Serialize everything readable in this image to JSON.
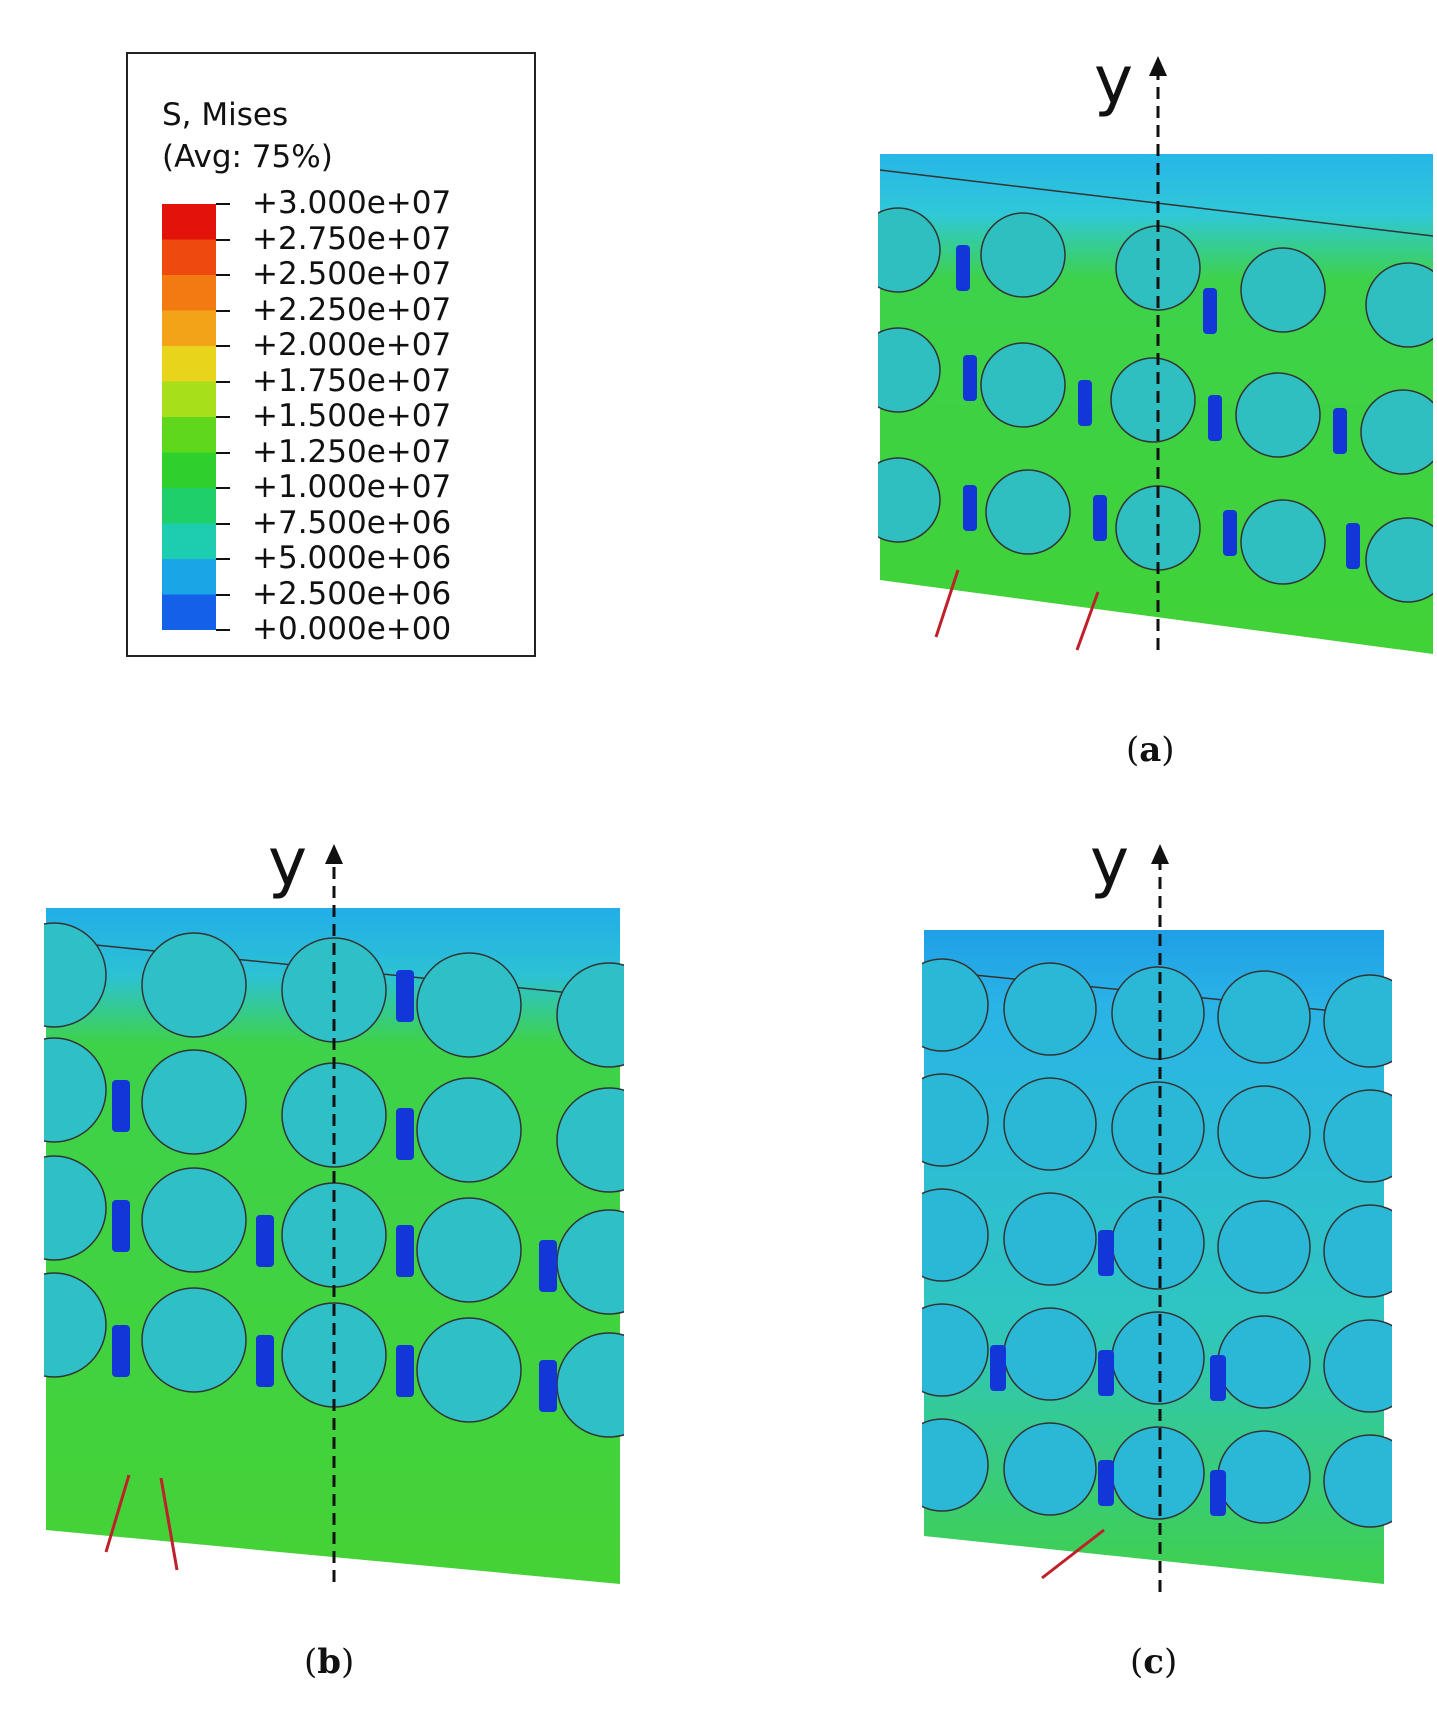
{
  "legend": {
    "title_line1": "S, Mises",
    "title_line2": "(Avg: 75%)",
    "labels": [
      "+3.000e+07",
      "+2.750e+07",
      "+2.500e+07",
      "+2.250e+07",
      "+2.000e+07",
      "+1.750e+07",
      "+1.500e+07",
      "+1.250e+07",
      "+1.000e+07",
      "+7.500e+06",
      "+5.000e+06",
      "+2.500e+06",
      "+0.000e+00"
    ],
    "colors": [
      "#e3120b",
      "#ee4a10",
      "#f37a12",
      "#f2a318",
      "#e8d41a",
      "#a8df1b",
      "#5ed71c",
      "#2fd02e",
      "#1fcf6a",
      "#1ccdb0",
      "#1aa6e6",
      "#1560e8",
      "#0a16d8"
    ]
  },
  "panels": {
    "a": {
      "axis": "y",
      "caption_open": "(",
      "caption_letter": "a",
      "caption_close": ")"
    },
    "b": {
      "axis": "y",
      "caption_open": "(",
      "caption_letter": "b",
      "caption_close": ")"
    },
    "c": {
      "axis": "y",
      "caption_open": "(",
      "caption_letter": "c",
      "caption_close": ")"
    }
  },
  "colors": {
    "arrow": "#c0202a",
    "field_green": "#3fd23a",
    "field_blue": "#22b3ea",
    "axis_line": "#111111"
  }
}
